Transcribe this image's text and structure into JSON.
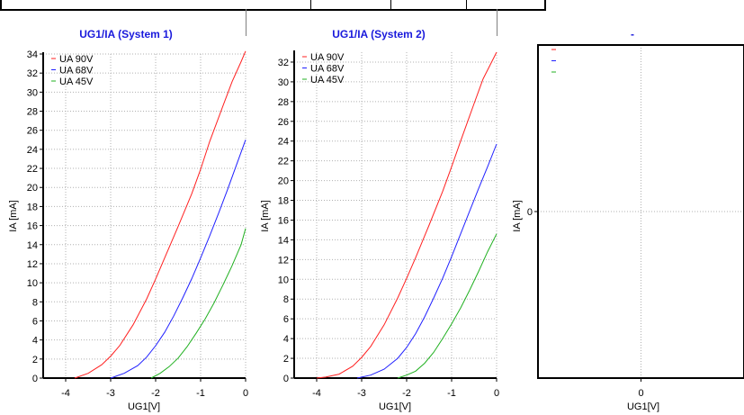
{
  "chart_data": [
    {
      "type": "line",
      "title": "UG1/IA (System 1)",
      "xlabel": "UG1[V]",
      "ylabel": "IA [mA]",
      "xlim": [
        -4.5,
        0
      ],
      "ylim": [
        0,
        34
      ],
      "xticks": [
        -4,
        -3,
        -2,
        -1,
        0
      ],
      "yticks": [
        0,
        2,
        4,
        6,
        8,
        10,
        12,
        14,
        16,
        18,
        20,
        22,
        24,
        26,
        28,
        30,
        32,
        34
      ],
      "grid": true,
      "legend": "top-left",
      "series": [
        {
          "name": "UA 90V",
          "color": "#ff2020",
          "x": [
            -3.8,
            -3.5,
            -3.2,
            -3.0,
            -2.8,
            -2.5,
            -2.2,
            -2.0,
            -1.8,
            -1.5,
            -1.2,
            -1.0,
            -0.8,
            -0.5,
            -0.3,
            -0.1,
            0.0
          ],
          "y": [
            0,
            0.5,
            1.4,
            2.3,
            3.4,
            5.6,
            8.3,
            10.4,
            12.6,
            15.9,
            19.3,
            21.9,
            24.8,
            28.6,
            31.1,
            33.2,
            34.3
          ]
        },
        {
          "name": "UA 68V",
          "color": "#2020ff",
          "x": [
            -3.0,
            -2.7,
            -2.4,
            -2.2,
            -2.0,
            -1.8,
            -1.6,
            -1.4,
            -1.2,
            -1.0,
            -0.8,
            -0.6,
            -0.4,
            -0.2,
            0.0
          ],
          "y": [
            0,
            0.5,
            1.3,
            2.2,
            3.4,
            4.8,
            6.5,
            8.4,
            10.4,
            12.6,
            14.9,
            17.3,
            19.8,
            22.4,
            25.0
          ]
        },
        {
          "name": "UA 45V",
          "color": "#20b020",
          "x": [
            -2.1,
            -1.9,
            -1.7,
            -1.5,
            -1.3,
            -1.1,
            -0.9,
            -0.7,
            -0.5,
            -0.3,
            -0.1,
            0.0
          ],
          "y": [
            0,
            0.5,
            1.2,
            2.1,
            3.3,
            4.7,
            6.2,
            7.9,
            9.8,
            11.8,
            14.0,
            15.7
          ]
        }
      ]
    },
    {
      "type": "line",
      "title": "UG1/IA (System 2)",
      "xlabel": "UG1[V]",
      "ylabel": "IA [mA]",
      "xlim": [
        -4.5,
        0
      ],
      "ylim": [
        0,
        33
      ],
      "xticks": [
        -4,
        -3,
        -2,
        -1,
        0
      ],
      "yticks": [
        0,
        2,
        4,
        6,
        8,
        10,
        12,
        14,
        16,
        18,
        20,
        22,
        24,
        26,
        28,
        30,
        32
      ],
      "grid": true,
      "legend": "top-left",
      "series": [
        {
          "name": "UA 90V",
          "color": "#ff2020",
          "x": [
            -4.0,
            -3.8,
            -3.5,
            -3.2,
            -3.0,
            -2.8,
            -2.5,
            -2.2,
            -2.0,
            -1.8,
            -1.5,
            -1.2,
            -1.0,
            -0.8,
            -0.5,
            -0.3,
            -0.1,
            0.0
          ],
          "y": [
            0,
            0.1,
            0.4,
            1.2,
            2.1,
            3.2,
            5.4,
            8.1,
            10.1,
            12.2,
            15.5,
            18.9,
            21.4,
            24.0,
            27.8,
            30.3,
            32.1,
            33.0
          ]
        },
        {
          "name": "UA 68V",
          "color": "#2020ff",
          "x": [
            -3.1,
            -2.8,
            -2.5,
            -2.2,
            -2.0,
            -1.8,
            -1.6,
            -1.4,
            -1.2,
            -1.0,
            -0.8,
            -0.6,
            -0.4,
            -0.2,
            0.0
          ],
          "y": [
            0,
            0.3,
            0.9,
            2.0,
            3.1,
            4.5,
            6.2,
            8.1,
            10.1,
            12.3,
            14.6,
            16.9,
            19.2,
            21.4,
            23.7
          ]
        },
        {
          "name": "UA 45V",
          "color": "#20b020",
          "x": [
            -2.2,
            -2.0,
            -1.8,
            -1.6,
            -1.4,
            -1.2,
            -1.0,
            -0.8,
            -0.6,
            -0.4,
            -0.2,
            0.0
          ],
          "y": [
            0,
            0.3,
            0.7,
            1.5,
            2.6,
            4.0,
            5.5,
            7.1,
            8.9,
            10.8,
            12.8,
            14.6
          ]
        }
      ]
    },
    {
      "type": "line",
      "title": "-",
      "xlabel": "UG1[V]",
      "ylabel": "IA [mA]",
      "xlim": [
        -1,
        1
      ],
      "ylim": [
        -1,
        1
      ],
      "xticks": [
        0
      ],
      "yticks": [
        0
      ],
      "grid": true,
      "legend": "top-left",
      "series": [
        {
          "name": "-",
          "color": "#ff2020",
          "x": [],
          "y": []
        },
        {
          "name": "-",
          "color": "#2020ff",
          "x": [],
          "y": []
        },
        {
          "name": "-",
          "color": "#20b020",
          "x": [],
          "y": []
        }
      ]
    }
  ]
}
